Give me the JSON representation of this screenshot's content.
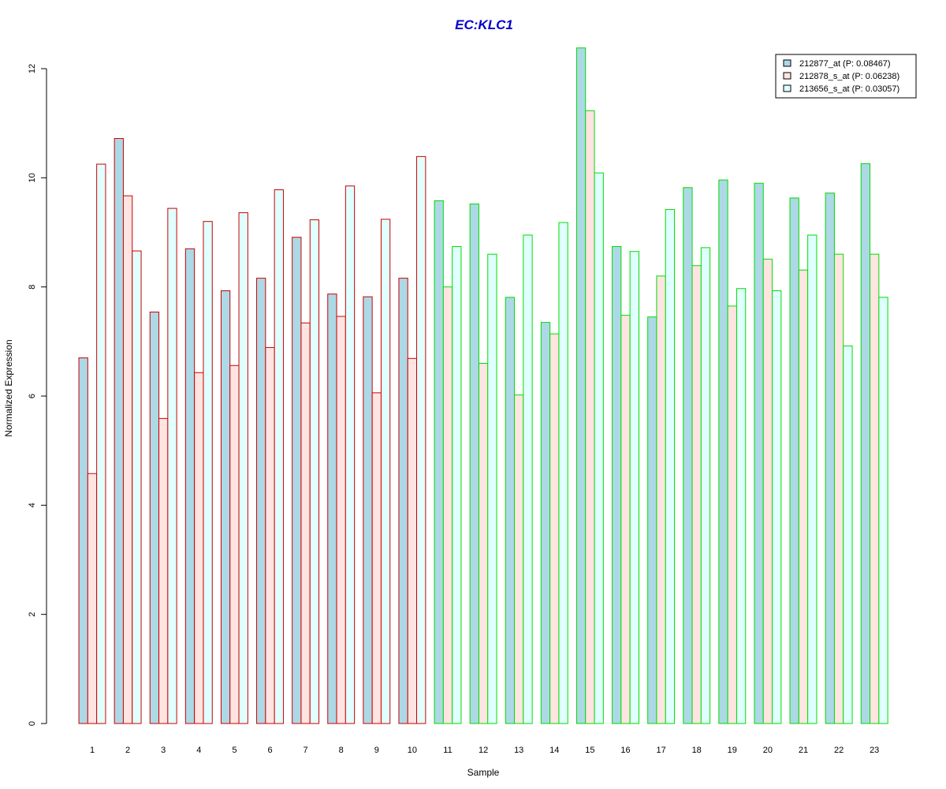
{
  "chart_data": {
    "type": "bar",
    "title": "EC:KLC1",
    "xlabel": "Sample",
    "ylabel": "Normalized Expression",
    "ylim": [
      0,
      12
    ],
    "yticks": [
      "0",
      "2",
      "4",
      "6",
      "8",
      "10",
      "12"
    ],
    "categories": [
      "1",
      "2",
      "3",
      "4",
      "5",
      "6",
      "7",
      "8",
      "9",
      "10",
      "11",
      "12",
      "13",
      "14",
      "15",
      "16",
      "17",
      "18",
      "19",
      "20",
      "21",
      "22",
      "23"
    ],
    "series": [
      {
        "name": "212877_at (P: 0.08467)",
        "fill": "#add8e6",
        "values": [
          6.7,
          10.72,
          7.54,
          8.7,
          7.93,
          8.16,
          8.91,
          7.87,
          7.82,
          8.16,
          9.58,
          9.52,
          7.81,
          7.35,
          12.38,
          8.74,
          7.45,
          9.82,
          9.96,
          9.9,
          9.63,
          9.72,
          10.26
        ]
      },
      {
        "name": "212878_s_at (P: 0.06238)",
        "fill": "#ffe4e1",
        "values": [
          4.58,
          9.67,
          5.59,
          6.43,
          6.56,
          6.89,
          7.34,
          7.46,
          6.06,
          6.69,
          8.0,
          6.6,
          6.02,
          7.14,
          11.23,
          7.48,
          8.2,
          8.39,
          7.65,
          8.51,
          8.31,
          8.6,
          8.6
        ]
      },
      {
        "name": "213656_s_at (P: 0.03057)",
        "fill": "#e0ffff",
        "values": [
          10.25,
          8.66,
          9.44,
          9.2,
          9.36,
          9.78,
          9.23,
          9.85,
          9.24,
          10.39,
          8.74,
          8.6,
          8.95,
          9.18,
          10.09,
          8.65,
          9.42,
          8.72,
          7.97,
          7.93,
          8.95,
          6.92,
          7.81
        ]
      }
    ],
    "group_border_colors": [
      "#cc0000",
      "#cc0000",
      "#cc0000",
      "#cc0000",
      "#cc0000",
      "#cc0000",
      "#cc0000",
      "#cc0000",
      "#cc0000",
      "#cc0000",
      "#00dd00",
      "#00dd00",
      "#00dd00",
      "#00dd00",
      "#00dd00",
      "#00dd00",
      "#00dd00",
      "#00dd00",
      "#00dd00",
      "#00dd00",
      "#00dd00",
      "#00dd00",
      "#00dd00"
    ],
    "title_color": "#0000cc",
    "legend_position": "top-right",
    "grid": false
  }
}
